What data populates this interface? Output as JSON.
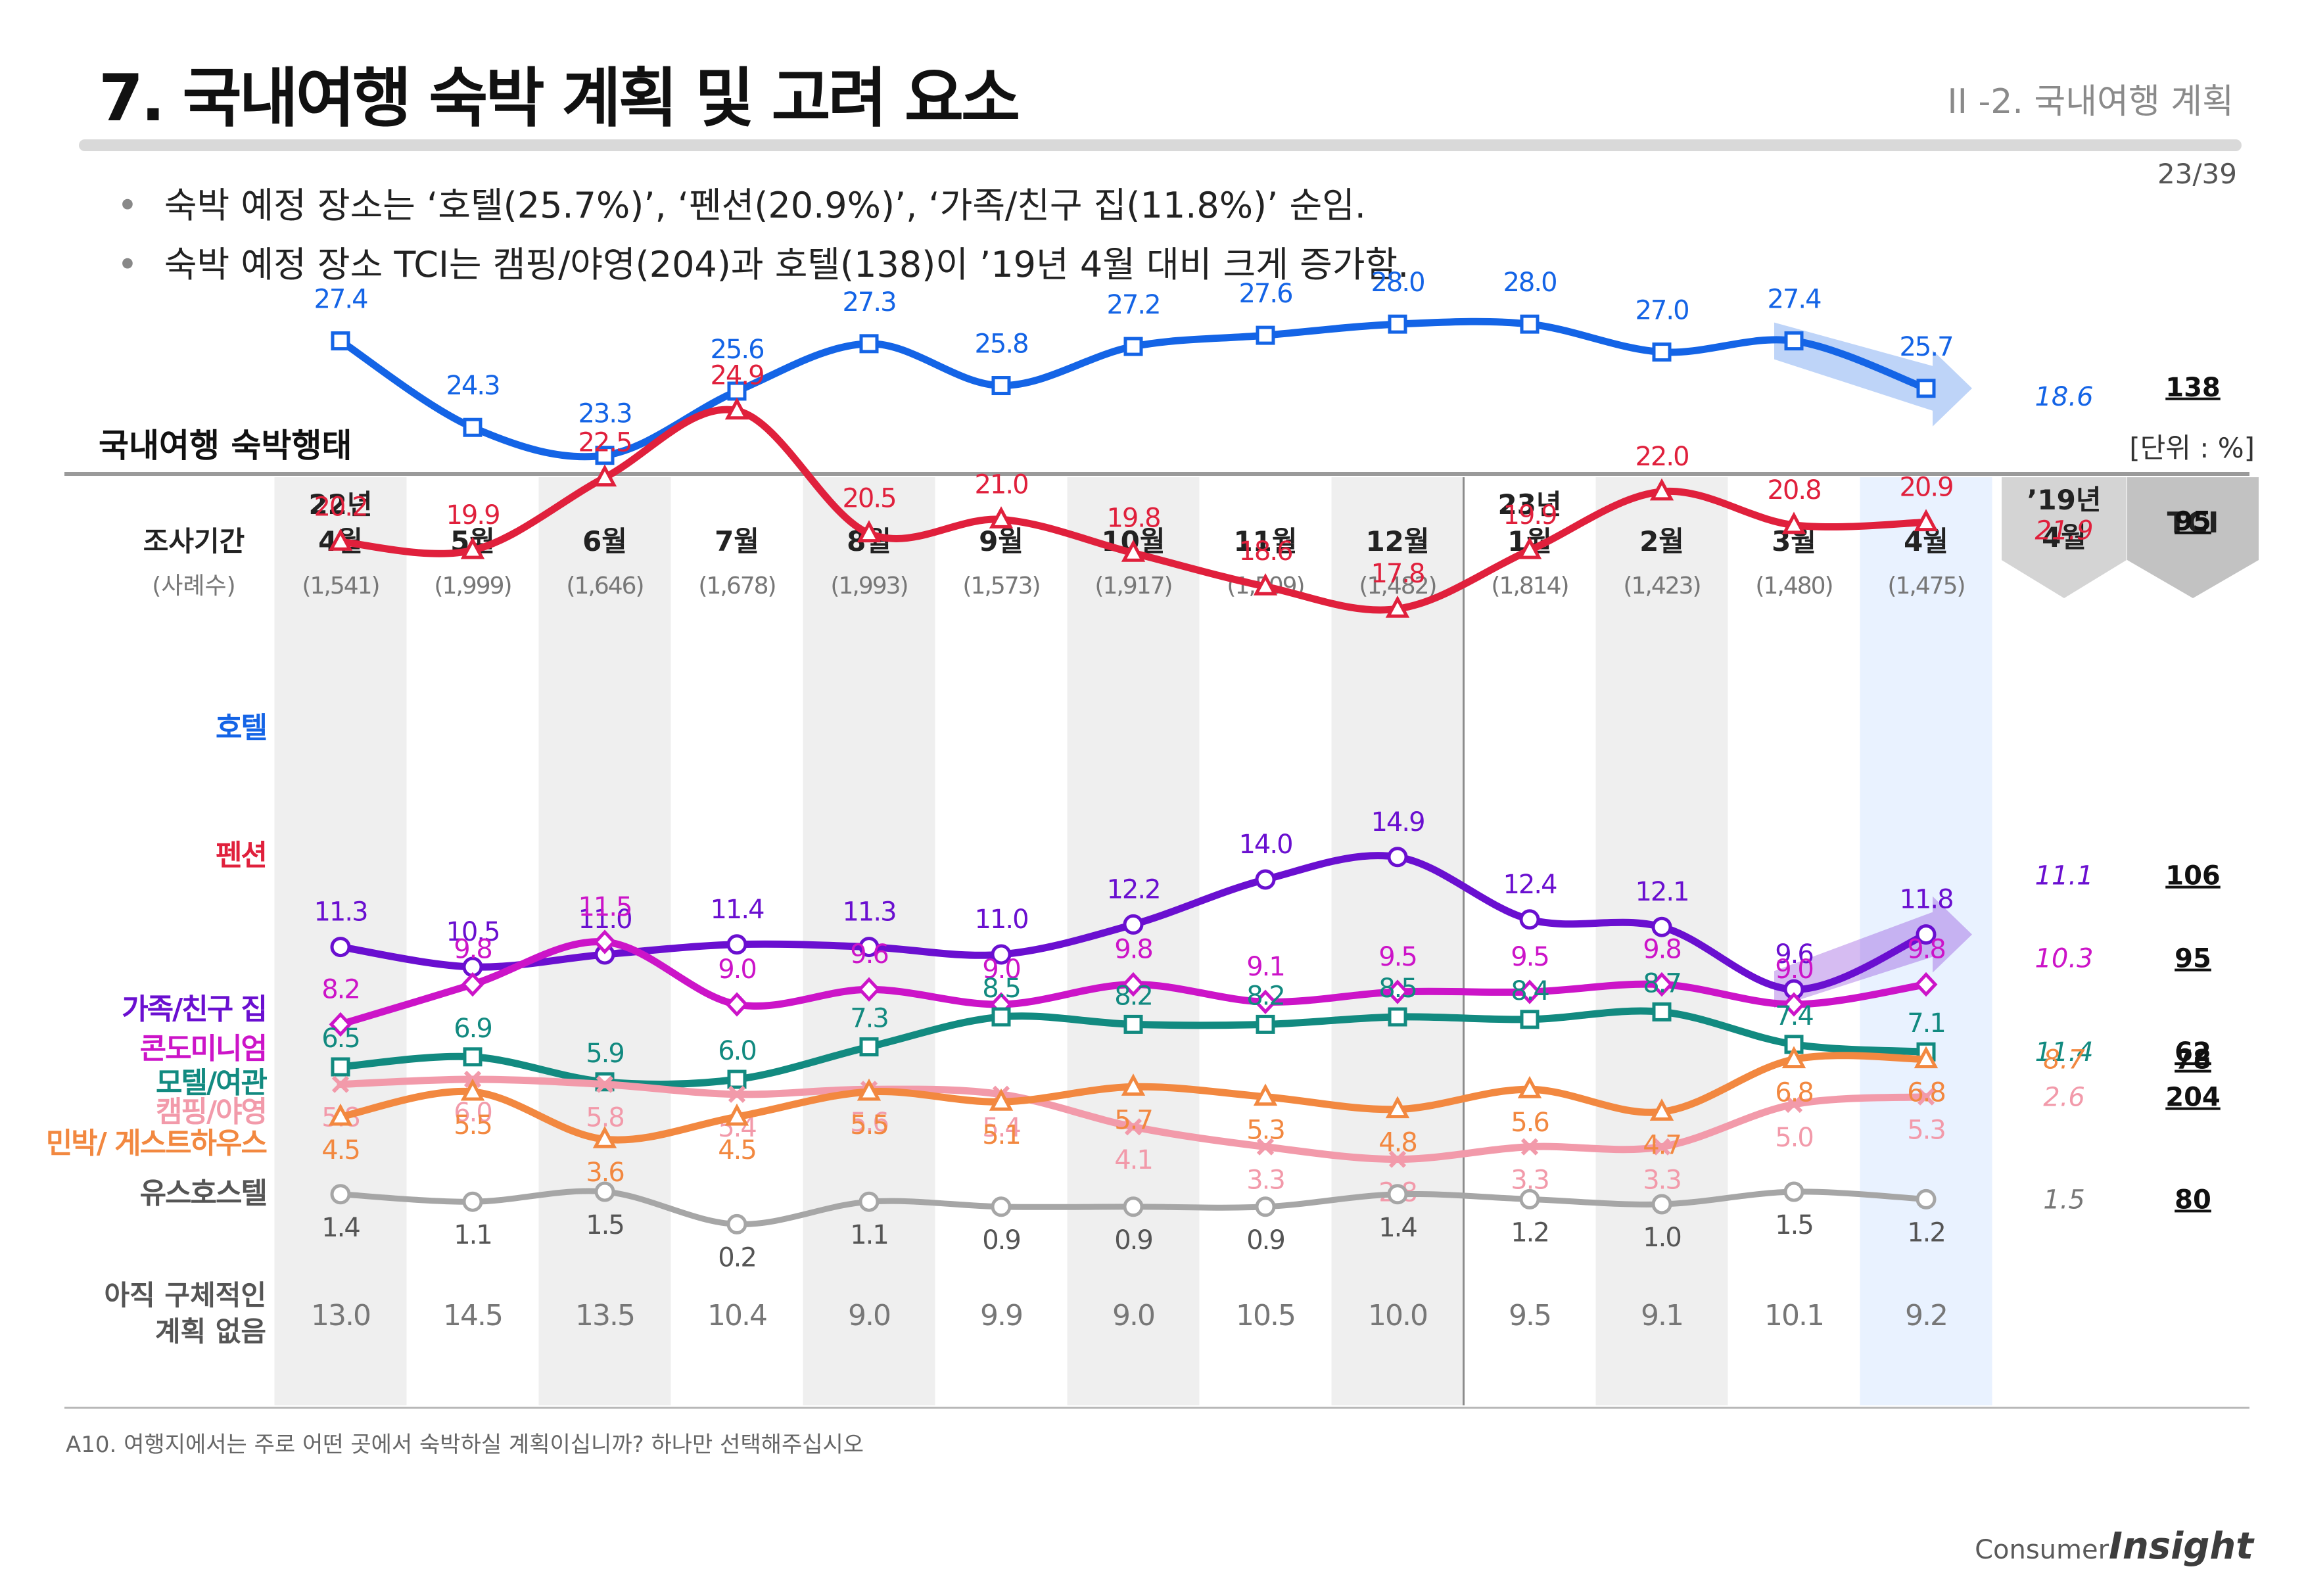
{
  "header": {
    "title": "7. 국내여행 숙박 계획 및 고려 요소",
    "section": "II -2. 국내여행 계획",
    "page": "23/39"
  },
  "bullets": [
    "숙박 예정 장소는 ‘호텔(25.7%)’, ‘펜션(20.9%)’, ‘가족/친구 집(11.8%)’ 순임.",
    "숙박 예정 장소 TCI는  캠핑/야영(204)과 호텔(138)이 ’19년 4월 대비 크게 증가함."
  ],
  "chart_title": "국내여행 숙박행태",
  "unit": "[단위 : %]",
  "footnote": "A10. 여행지에서는 주로 어떤 곳에서 숙박하실 계획이십니까? 하나만 선택해주십시오",
  "logo": {
    "consumer": "Consumer",
    "insight": "Insight"
  },
  "chart_data": {
    "type": "line",
    "period_label": "조사기간",
    "sample_label": "(사례수)",
    "periods": [
      {
        "year": "22년",
        "month": "4월",
        "n": "(1,541)"
      },
      {
        "year": "",
        "month": "5월",
        "n": "(1,999)"
      },
      {
        "year": "",
        "month": "6월",
        "n": "(1,646)"
      },
      {
        "year": "",
        "month": "7월",
        "n": "(1,678)"
      },
      {
        "year": "",
        "month": "8월",
        "n": "(1,993)"
      },
      {
        "year": "",
        "month": "9월",
        "n": "(1,573)"
      },
      {
        "year": "",
        "month": "10월",
        "n": "(1,917)"
      },
      {
        "year": "",
        "month": "11월",
        "n": "(1,509)"
      },
      {
        "year": "",
        "month": "12월",
        "n": "(1,482)"
      },
      {
        "year": "23년",
        "month": "1월",
        "n": "(1,814)"
      },
      {
        "year": "",
        "month": "2월",
        "n": "(1,423)"
      },
      {
        "year": "",
        "month": "3월",
        "n": "(1,480)"
      },
      {
        "year": "",
        "month": "4월",
        "n": "(1,475)"
      }
    ],
    "comparison_header": {
      "line1": "’19년",
      "line2": "4월"
    },
    "tci_header": "TCI",
    "series": [
      {
        "name": "호텔",
        "color": "#1464e6",
        "marker": "square",
        "values": [
          27.4,
          24.3,
          23.3,
          25.6,
          27.3,
          25.8,
          27.2,
          27.6,
          28.0,
          28.0,
          27.0,
          27.4,
          25.7
        ],
        "y2019": "18.6",
        "tci": "138"
      },
      {
        "name": "펜션",
        "color": "#e0203c",
        "marker": "triangle",
        "values": [
          20.2,
          19.9,
          22.5,
          24.9,
          20.5,
          21.0,
          19.8,
          18.6,
          17.8,
          19.9,
          22.0,
          20.8,
          20.9
        ],
        "y2019": "21.9",
        "tci": "95"
      },
      {
        "name": "가족/친구 집",
        "color": "#6a0fd0",
        "marker": "circle",
        "values": [
          11.3,
          10.5,
          11.0,
          11.4,
          11.3,
          11.0,
          12.2,
          14.0,
          14.9,
          12.4,
          12.1,
          9.6,
          11.8
        ],
        "y2019": "11.1",
        "tci": "106"
      },
      {
        "name": "콘도미니엄",
        "color": "#cc14c8",
        "marker": "diamond",
        "values": [
          8.2,
          9.8,
          11.5,
          9.0,
          9.6,
          9.0,
          9.8,
          9.1,
          9.5,
          9.5,
          9.8,
          9.0,
          9.8
        ],
        "y2019": "10.3",
        "tci": "95"
      },
      {
        "name": "모텔/여관",
        "color": "#128a80",
        "marker": "square",
        "values": [
          6.5,
          6.9,
          5.9,
          6.0,
          7.3,
          8.5,
          8.2,
          8.2,
          8.5,
          8.4,
          8.7,
          7.4,
          7.1
        ],
        "y2019": "11.4",
        "tci": "62"
      },
      {
        "name": "캠핑/야영",
        "color": "#f29aaa",
        "marker": "x",
        "values": [
          5.8,
          6.0,
          5.8,
          5.4,
          5.6,
          5.4,
          4.1,
          3.3,
          2.8,
          3.3,
          3.3,
          5.0,
          5.3
        ],
        "y2019": "2.6",
        "tci": "204"
      },
      {
        "name": "민박/ 게스트하우스",
        "color": "#f28840",
        "marker": "triangle",
        "values": [
          4.5,
          5.5,
          3.6,
          4.5,
          5.5,
          5.1,
          5.7,
          5.3,
          4.8,
          5.6,
          4.7,
          6.8,
          6.8
        ],
        "y2019": "8.7",
        "tci": "78"
      },
      {
        "name": "유스호스텔",
        "color": "#a6a6a6",
        "marker": "circle",
        "values": [
          1.4,
          1.1,
          1.5,
          0.2,
          1.1,
          0.9,
          0.9,
          0.9,
          1.4,
          1.2,
          1.0,
          1.5,
          1.2
        ],
        "y2019": "1.5",
        "tci": "80"
      }
    ],
    "no_plan": {
      "name": "아직 구체적인 계획 없음",
      "values": [
        "13.0",
        "14.5",
        "13.5",
        "10.4",
        "9.0",
        "9.9",
        "9.0",
        "10.5",
        "10.0",
        "9.5",
        "9.1",
        "10.1",
        "9.2"
      ]
    },
    "highlight_trends": [
      "호텔",
      "가족/친구 집"
    ]
  }
}
